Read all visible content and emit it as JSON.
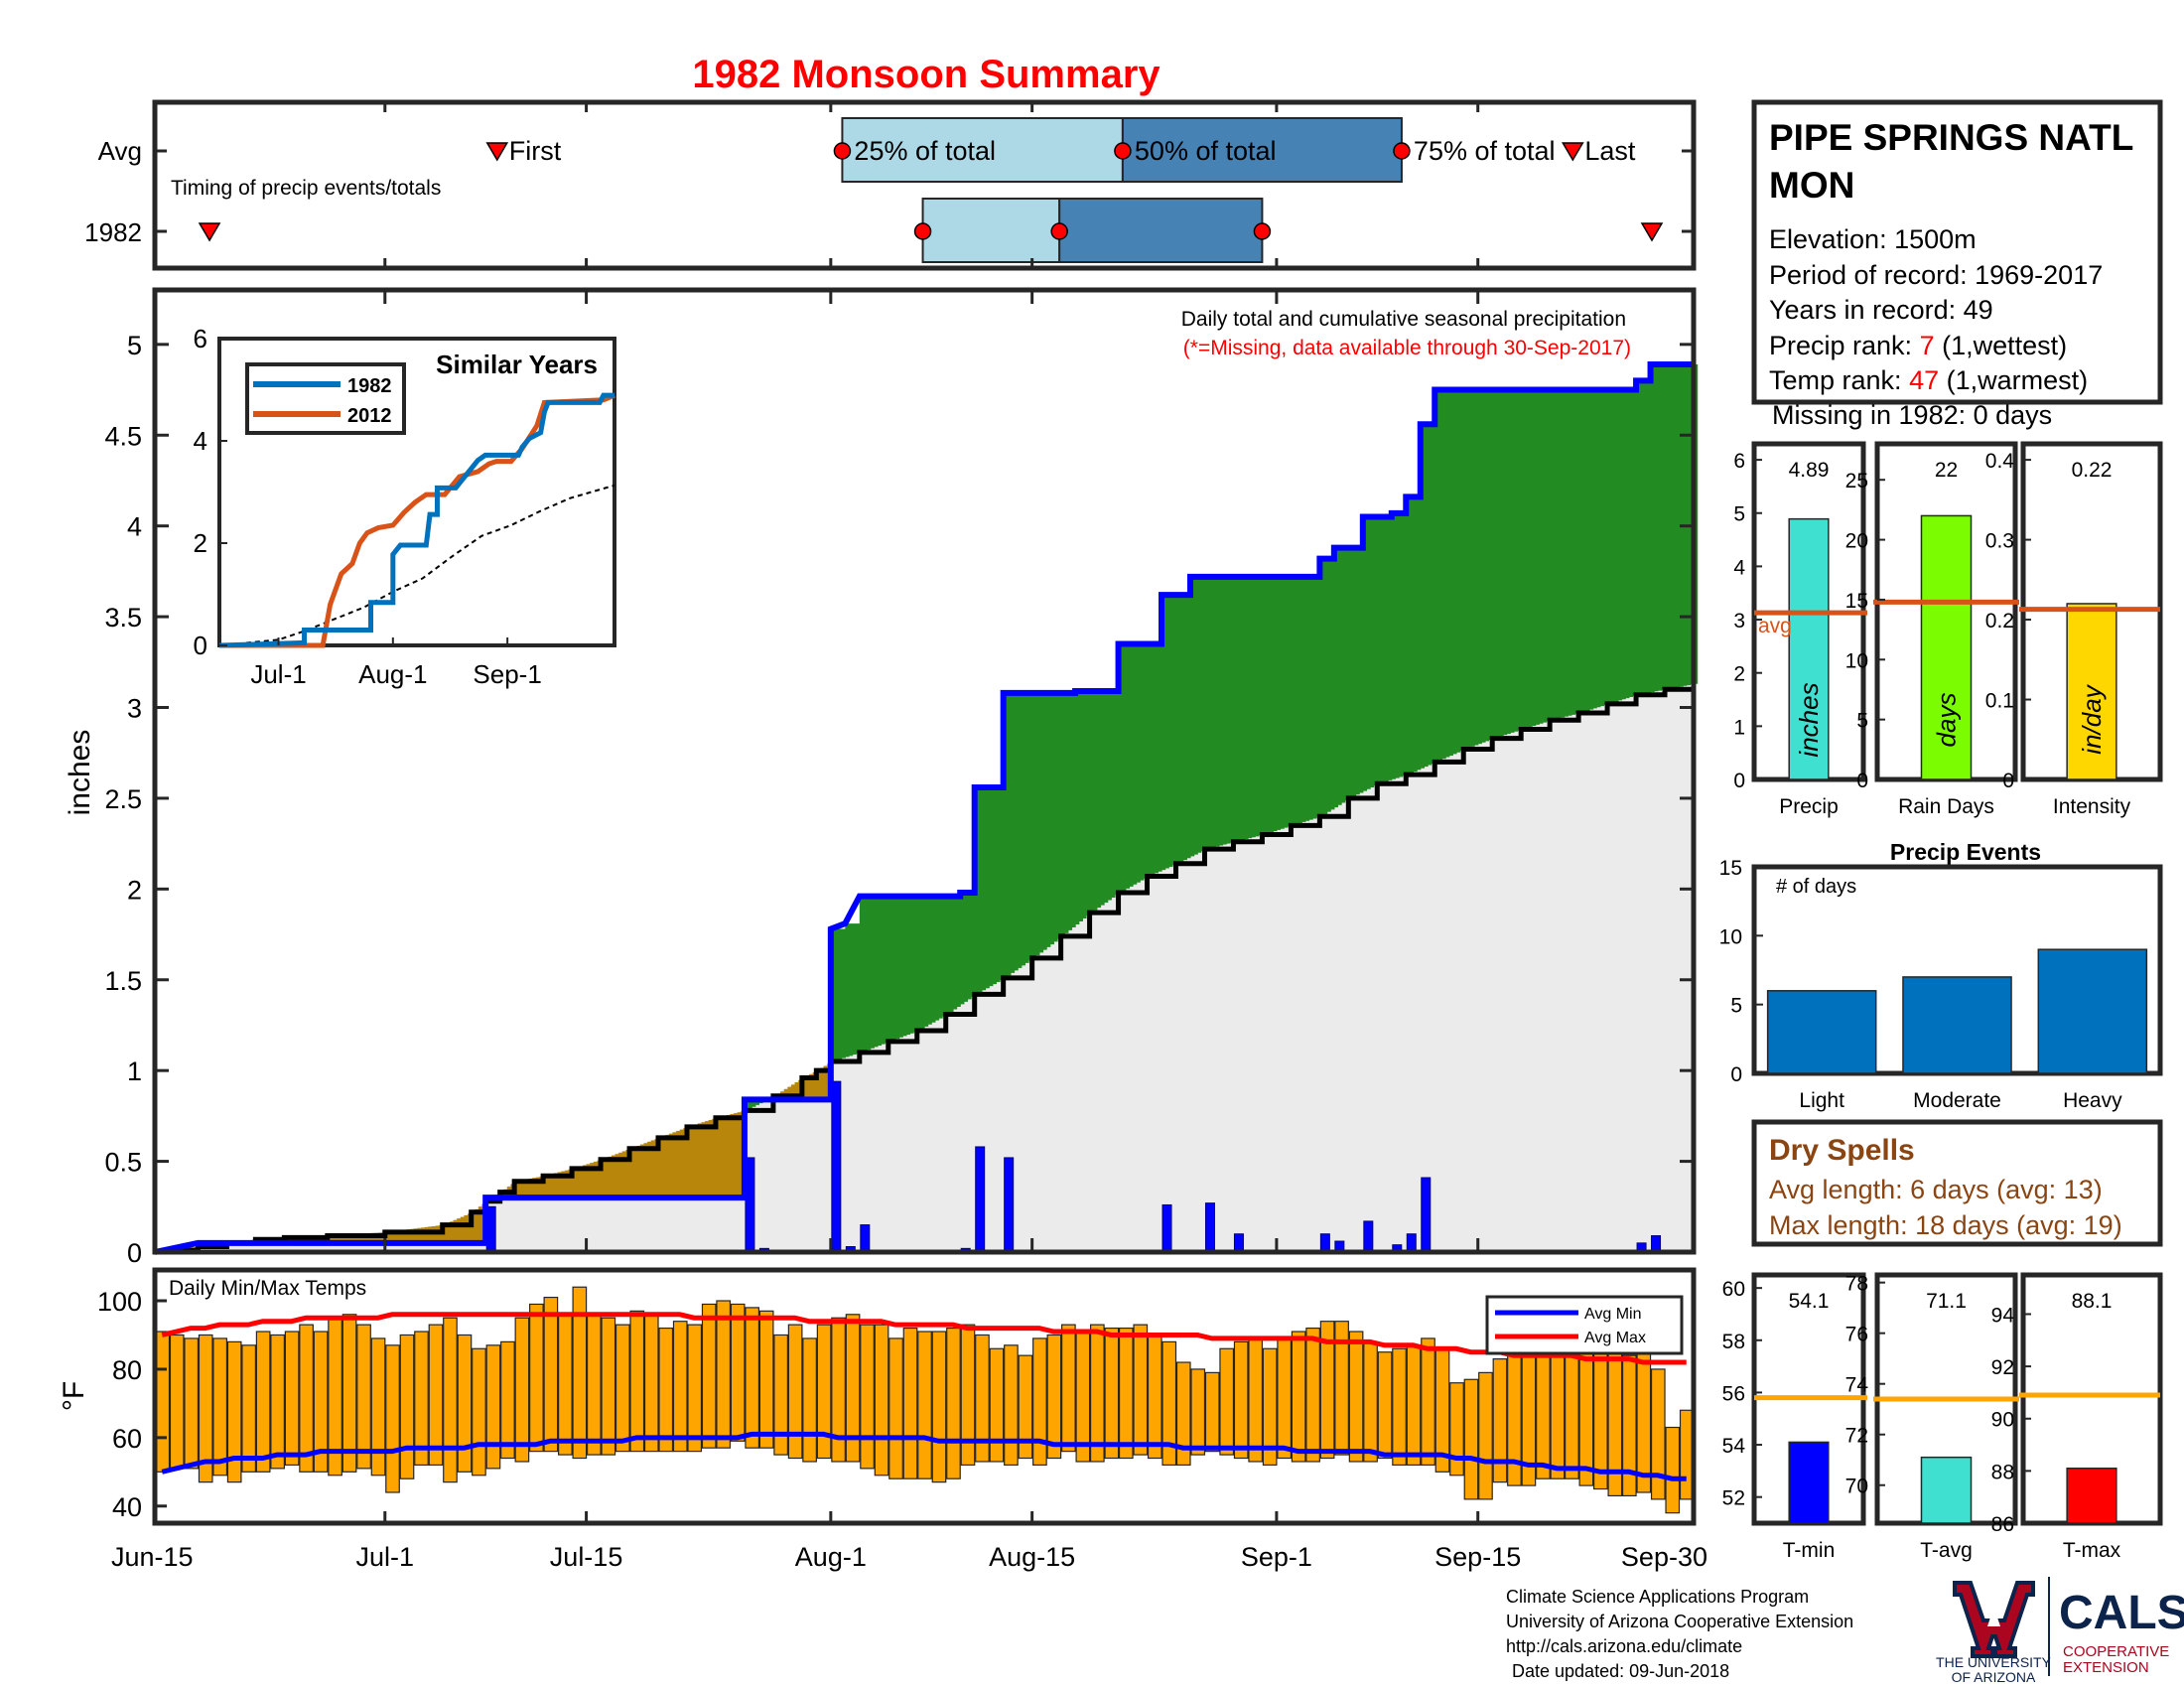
{
  "title": "1982 Monsoon Summary",
  "timing": {
    "avg_label": "Avg",
    "year_label": "1982",
    "subtitle": "Timing of precip events/totals",
    "first_label": "First",
    "last_label": "Last",
    "p25_label": "25% of total",
    "p50_label": "50% of total",
    "p75_label": "75% of total",
    "x_range_days": [
      0,
      107
    ],
    "avg": {
      "first": 23.8,
      "p25": 47.8,
      "p50": 67.3,
      "p75": 86.7,
      "last": 98.6
    },
    "year": {
      "first": 3.8,
      "p25": 53.4,
      "p50": 62.9,
      "p75": 77.0,
      "last": 104.1
    }
  },
  "station": {
    "name_line1": "PIPE SPRINGS NATL",
    "name_line2": "MON",
    "elevation": "Elevation: 1500m",
    "period": "Period of record: 1969-2017",
    "years": "Years in record: 49",
    "precip_rank_prefix": "Precip rank: ",
    "precip_rank_value": "7",
    "precip_rank_suffix": " (1,wettest)",
    "temp_rank_prefix": "Temp rank: ",
    "temp_rank_value": "47",
    "temp_rank_suffix": " (1,warmest)",
    "missing": "Missing in 1982: 0 days"
  },
  "main_chart": {
    "caption": "Daily total and cumulative seasonal precipitation",
    "missing_note": "(*=Missing, data available through 30-Sep-2017)",
    "ylabel": "inches",
    "ylim": [
      0,
      5.3
    ],
    "yticks": [
      "0",
      "0.5",
      "1",
      "1.5",
      "2",
      "2.5",
      "3",
      "3.5",
      "4",
      "4.5",
      "5"
    ],
    "x_tick_labels": [
      "Jun-15",
      "Jul-1",
      "Jul-15",
      "Aug-1",
      "Aug-15",
      "Sep-1",
      "Sep-15",
      "Sep-30"
    ],
    "x_tick_days": [
      0,
      16,
      30,
      47,
      61,
      78,
      92,
      107
    ],
    "colors": {
      "above_avg": "#228b22",
      "below_avg": "#b8860b",
      "avg_area": "#ebebeb",
      "year_line": "#0000ff",
      "avg_line": "#000000"
    },
    "cumulative_1982": [
      [
        0,
        0
      ],
      [
        3,
        0.05
      ],
      [
        9,
        0.05
      ],
      [
        23,
        0.05
      ],
      [
        23,
        0.3
      ],
      [
        41,
        0.3
      ],
      [
        41,
        0.84
      ],
      [
        42,
        0.84
      ],
      [
        42,
        0.84
      ],
      [
        47,
        0.84
      ],
      [
        47,
        1.78
      ],
      [
        48,
        1.81
      ],
      [
        49,
        1.96
      ],
      [
        56,
        1.96
      ],
      [
        56,
        1.98
      ],
      [
        57,
        1.98
      ],
      [
        57,
        2.56
      ],
      [
        59,
        2.56
      ],
      [
        59,
        3.08
      ],
      [
        64,
        3.08
      ],
      [
        64,
        3.09
      ],
      [
        67,
        3.09
      ],
      [
        67,
        3.35
      ],
      [
        70,
        3.35
      ],
      [
        70,
        3.62
      ],
      [
        72,
        3.62
      ],
      [
        72,
        3.72
      ],
      [
        81,
        3.72
      ],
      [
        81,
        3.82
      ],
      [
        82,
        3.82
      ],
      [
        82,
        3.88
      ],
      [
        84,
        3.88
      ],
      [
        84,
        4.05
      ],
      [
        86,
        4.05
      ],
      [
        86,
        4.07
      ],
      [
        87,
        4.07
      ],
      [
        87,
        4.16
      ],
      [
        88,
        4.16
      ],
      [
        88,
        4.56
      ],
      [
        89,
        4.56
      ],
      [
        89,
        4.75
      ],
      [
        103,
        4.75
      ],
      [
        103,
        4.8
      ],
      [
        104,
        4.8
      ],
      [
        104,
        4.89
      ],
      [
        107,
        4.89
      ]
    ],
    "cumulative_avg": [
      [
        0,
        0
      ],
      [
        1,
        0.01
      ],
      [
        3,
        0.03
      ],
      [
        5,
        0.05
      ],
      [
        7,
        0.07
      ],
      [
        9,
        0.08
      ],
      [
        12,
        0.09
      ],
      [
        16,
        0.11
      ],
      [
        20,
        0.15
      ],
      [
        22,
        0.22
      ],
      [
        23,
        0.28
      ],
      [
        24,
        0.33
      ],
      [
        25,
        0.39
      ],
      [
        27,
        0.42
      ],
      [
        29,
        0.46
      ],
      [
        31,
        0.51
      ],
      [
        33,
        0.57
      ],
      [
        35,
        0.63
      ],
      [
        37,
        0.69
      ],
      [
        39,
        0.74
      ],
      [
        41,
        0.78
      ],
      [
        43,
        0.86
      ],
      [
        45,
        0.96
      ],
      [
        46,
        1.0
      ],
      [
        47,
        1.05
      ],
      [
        49,
        1.1
      ],
      [
        51,
        1.16
      ],
      [
        53,
        1.22
      ],
      [
        55,
        1.31
      ],
      [
        57,
        1.42
      ],
      [
        59,
        1.51
      ],
      [
        61,
        1.62
      ],
      [
        63,
        1.74
      ],
      [
        65,
        1.87
      ],
      [
        67,
        1.98
      ],
      [
        69,
        2.07
      ],
      [
        71,
        2.14
      ],
      [
        73,
        2.22
      ],
      [
        75,
        2.26
      ],
      [
        77,
        2.3
      ],
      [
        79,
        2.35
      ],
      [
        81,
        2.4
      ],
      [
        83,
        2.5
      ],
      [
        85,
        2.58
      ],
      [
        87,
        2.63
      ],
      [
        89,
        2.7
      ],
      [
        91,
        2.77
      ],
      [
        93,
        2.83
      ],
      [
        95,
        2.88
      ],
      [
        97,
        2.93
      ],
      [
        99,
        2.97
      ],
      [
        101,
        3.02
      ],
      [
        103,
        3.07
      ],
      [
        105,
        3.1
      ],
      [
        107,
        3.13
      ]
    ],
    "daily_precip": [
      [
        23,
        0.25
      ],
      [
        41,
        0.52
      ],
      [
        42,
        0.02
      ],
      [
        47,
        0.94
      ],
      [
        48,
        0.03
      ],
      [
        49,
        0.15
      ],
      [
        56,
        0.02
      ],
      [
        57,
        0.58
      ],
      [
        59,
        0.52
      ],
      [
        70,
        0.26
      ],
      [
        73,
        0.27
      ],
      [
        75,
        0.1
      ],
      [
        81,
        0.1
      ],
      [
        82,
        0.06
      ],
      [
        84,
        0.17
      ],
      [
        86,
        0.04
      ],
      [
        87,
        0.1
      ],
      [
        88,
        0.41
      ],
      [
        103,
        0.05
      ],
      [
        104,
        0.09
      ]
    ]
  },
  "inset": {
    "title": "Similar Years",
    "ylim": [
      0,
      6
    ],
    "yticks": [
      "0",
      "2",
      "4",
      "6"
    ],
    "xlim_days": [
      0,
      107
    ],
    "x_tick_labels": [
      "Jul-1",
      "Aug-1",
      "Sep-1"
    ],
    "x_tick_days": [
      16,
      47,
      78
    ],
    "series": [
      {
        "name": "1982",
        "color": "#0072bd",
        "points": [
          [
            0,
            0
          ],
          [
            23,
            0.05
          ],
          [
            23,
            0.3
          ],
          [
            41,
            0.3
          ],
          [
            41,
            0.84
          ],
          [
            47,
            0.84
          ],
          [
            47,
            1.78
          ],
          [
            49,
            1.96
          ],
          [
            56,
            1.96
          ],
          [
            57,
            2.56
          ],
          [
            59,
            2.56
          ],
          [
            59,
            3.08
          ],
          [
            64,
            3.08
          ],
          [
            67,
            3.35
          ],
          [
            70,
            3.62
          ],
          [
            72,
            3.72
          ],
          [
            81,
            3.72
          ],
          [
            82,
            3.88
          ],
          [
            84,
            4.05
          ],
          [
            87,
            4.16
          ],
          [
            88,
            4.56
          ],
          [
            89,
            4.75
          ],
          [
            103,
            4.75
          ],
          [
            104,
            4.89
          ],
          [
            107,
            4.89
          ]
        ]
      },
      {
        "name": "2012",
        "color": "#d95319",
        "points": [
          [
            0,
            0
          ],
          [
            28,
            0
          ],
          [
            30,
            0.8
          ],
          [
            33,
            1.4
          ],
          [
            36,
            1.6
          ],
          [
            38,
            2.0
          ],
          [
            40,
            2.2
          ],
          [
            43,
            2.3
          ],
          [
            47,
            2.35
          ],
          [
            50,
            2.6
          ],
          [
            53,
            2.8
          ],
          [
            56,
            2.95
          ],
          [
            61,
            2.95
          ],
          [
            65,
            3.3
          ],
          [
            70,
            3.4
          ],
          [
            73,
            3.55
          ],
          [
            75,
            3.6
          ],
          [
            79,
            3.6
          ],
          [
            82,
            3.85
          ],
          [
            86,
            4.3
          ],
          [
            88,
            4.75
          ],
          [
            104,
            4.8
          ],
          [
            107,
            4.89
          ]
        ]
      }
    ],
    "avg_points": [
      [
        0,
        0
      ],
      [
        16,
        0.11
      ],
      [
        23,
        0.28
      ],
      [
        31,
        0.51
      ],
      [
        39,
        0.74
      ],
      [
        47,
        1.05
      ],
      [
        55,
        1.31
      ],
      [
        63,
        1.74
      ],
      [
        71,
        2.14
      ],
      [
        79,
        2.35
      ],
      [
        87,
        2.63
      ],
      [
        95,
        2.88
      ],
      [
        107,
        3.13
      ]
    ]
  },
  "temps": {
    "title": "Daily Min/Max Temps",
    "ylabel": "°F",
    "ylim": [
      35,
      109
    ],
    "yticks": [
      "40",
      "60",
      "80",
      "100"
    ],
    "legend_min": "Avg Min",
    "legend_max": "Avg Max",
    "bar_color": "#ffa500",
    "min_line_color": "#0000ff",
    "max_line_color": "#ff0000",
    "tmax": [
      91,
      90,
      89,
      90,
      89,
      88,
      87,
      91,
      90,
      91,
      93,
      91,
      95,
      96,
      93,
      89,
      87,
      90,
      91,
      93,
      95,
      90,
      86,
      87,
      88,
      95,
      99,
      101,
      96,
      104,
      96,
      95,
      93,
      97,
      96,
      92,
      94,
      93,
      99,
      100,
      99,
      98,
      97,
      90,
      93,
      89,
      93,
      95,
      96,
      93,
      93,
      89,
      92,
      91,
      91,
      92,
      93,
      90,
      86,
      87,
      84,
      89,
      90,
      93,
      91,
      93,
      92,
      92,
      93,
      90,
      88,
      82,
      80,
      79,
      86,
      88,
      89,
      86,
      89,
      91,
      92,
      94,
      94,
      91,
      88,
      85,
      86,
      87,
      89,
      86,
      76,
      77,
      79,
      83,
      87,
      88,
      87,
      84,
      90,
      87,
      87,
      86,
      84,
      86,
      80,
      63,
      68
    ],
    "tmin": [
      50,
      51,
      51,
      47,
      49,
      47,
      50,
      50,
      51,
      52,
      50,
      50,
      49,
      50,
      51,
      49,
      44,
      48,
      52,
      52,
      47,
      50,
      49,
      51,
      54,
      53,
      56,
      56,
      55,
      54,
      55,
      55,
      56,
      56,
      56,
      56,
      56,
      56,
      57,
      57,
      59,
      57,
      57,
      55,
      54,
      53,
      54,
      53,
      53,
      51,
      49,
      48,
      48,
      48,
      47,
      48,
      52,
      53,
      53,
      52,
      54,
      52,
      54,
      56,
      53,
      53,
      54,
      54,
      55,
      54,
      52,
      52,
      55,
      56,
      55,
      54,
      53,
      52,
      54,
      53,
      53,
      54,
      55,
      53,
      53,
      54,
      52,
      52,
      52,
      50,
      49,
      42,
      42,
      47,
      46,
      46,
      48,
      48,
      48,
      46,
      45,
      43,
      43,
      44,
      42,
      38,
      42
    ],
    "avg_min": [
      50,
      51,
      52,
      53,
      53,
      54,
      54,
      54,
      55,
      55,
      55,
      56,
      56,
      56,
      56,
      56,
      56,
      57,
      57,
      57,
      57,
      57,
      58,
      58,
      58,
      58,
      58,
      59,
      59,
      59,
      59,
      59,
      59,
      60,
      60,
      60,
      60,
      60,
      60,
      60,
      60,
      61,
      61,
      61,
      61,
      61,
      61,
      60,
      60,
      60,
      60,
      60,
      60,
      60,
      59,
      59,
      59,
      59,
      59,
      59,
      59,
      59,
      58,
      58,
      58,
      58,
      58,
      58,
      58,
      58,
      58,
      57,
      57,
      57,
      57,
      57,
      57,
      57,
      57,
      56,
      56,
      56,
      56,
      56,
      56,
      55,
      55,
      55,
      55,
      55,
      54,
      54,
      53,
      53,
      53,
      52,
      52,
      51,
      51,
      51,
      50,
      50,
      50,
      49,
      49,
      48,
      48
    ],
    "avg_max": [
      90,
      91,
      92,
      92,
      93,
      93,
      93,
      94,
      94,
      94,
      95,
      95,
      95,
      95,
      95,
      95,
      96,
      96,
      96,
      96,
      96,
      96,
      96,
      96,
      96,
      96,
      96,
      96,
      96,
      96,
      96,
      96,
      96,
      96,
      96,
      96,
      96,
      95,
      95,
      95,
      95,
      95,
      95,
      95,
      95,
      94,
      94,
      94,
      94,
      94,
      94,
      93,
      93,
      93,
      93,
      93,
      92,
      92,
      92,
      92,
      92,
      92,
      91,
      91,
      91,
      91,
      90,
      90,
      90,
      90,
      90,
      90,
      90,
      89,
      89,
      89,
      89,
      89,
      89,
      89,
      89,
      88,
      88,
      88,
      88,
      87,
      87,
      87,
      86,
      86,
      86,
      85,
      85,
      85,
      84,
      84,
      84,
      84,
      84,
      83,
      83,
      83,
      83,
      82,
      82,
      82,
      82
    ]
  },
  "summary_bars": {
    "precip": {
      "label": "Precip",
      "unit": "inches",
      "value": 4.89,
      "value_label": "4.89",
      "avg": 3.13,
      "avg_label": "avg",
      "ylim": [
        0,
        6.3
      ],
      "yticks": [
        "0",
        "1",
        "2",
        "3",
        "4",
        "5",
        "6"
      ],
      "color": "#40e0d0"
    },
    "rain_days": {
      "label": "Rain Days",
      "unit": "days",
      "value": 22,
      "value_label": "22",
      "avg": 14.8,
      "ylim": [
        0,
        28
      ],
      "yticks": [
        "0",
        "5",
        "10",
        "15",
        "20",
        "25"
      ],
      "color": "#7cfc00"
    },
    "intensity": {
      "label": "Intensity",
      "unit": "in/day",
      "value": 0.22,
      "value_label": "0.22",
      "avg": 0.213,
      "ylim": [
        0,
        0.42
      ],
      "yticks": [
        "0",
        "0.1",
        "0.2",
        "0.3",
        "0.4"
      ],
      "color": "#ffd700"
    },
    "avg_line_color": "#d95319"
  },
  "precip_events": {
    "title": "Precip Events",
    "ylabel": "# of days",
    "ylim": [
      0,
      15
    ],
    "yticks": [
      "0",
      "5",
      "10",
      "15"
    ],
    "categories": [
      "Light",
      "Moderate",
      "Heavy"
    ],
    "values": [
      6,
      7,
      9
    ],
    "color": "#0072bd"
  },
  "dry_spells": {
    "title": "Dry Spells",
    "avg_length": "Avg length: 6 days (avg: 13)",
    "max_length": "Max length: 18 days (avg: 19)",
    "color": "#8b4513"
  },
  "temp_bars": {
    "tmin": {
      "label": "T-min",
      "value": 54.1,
      "value_label": "54.1",
      "avg": 55.8,
      "ylim": [
        51,
        60.5
      ],
      "yticks": [
        "52",
        "54",
        "56",
        "58",
        "60"
      ],
      "color": "#0000ff"
    },
    "tavg": {
      "label": "T-avg",
      "value": 71.1,
      "value_label": "71.1",
      "avg": 73.4,
      "ylim": [
        68.5,
        78.3
      ],
      "yticks": [
        "70",
        "72",
        "74",
        "76",
        "78"
      ],
      "color": "#40e0d0"
    },
    "tmax": {
      "label": "T-max",
      "value": 88.1,
      "value_label": "88.1",
      "avg": 90.9,
      "ylim": [
        86,
        95.5
      ],
      "yticks": [
        "86",
        "88",
        "90",
        "92",
        "94"
      ],
      "color": "#ff0000"
    },
    "avg_line_color": "#ffa500"
  },
  "footer": {
    "line1": "Climate Science Applications Program",
    "line2": "University of Arizona Cooperative Extension",
    "line3": "http://cals.arizona.edu/climate",
    "line4": "Date updated: 09-Jun-2018",
    "ua_line1": "THE UNIVERSITY",
    "ua_line2": "OF ARIZONA",
    "cals": "CALS",
    "coop1": "COOPERATIVE",
    "coop2": "EXTENSION"
  }
}
